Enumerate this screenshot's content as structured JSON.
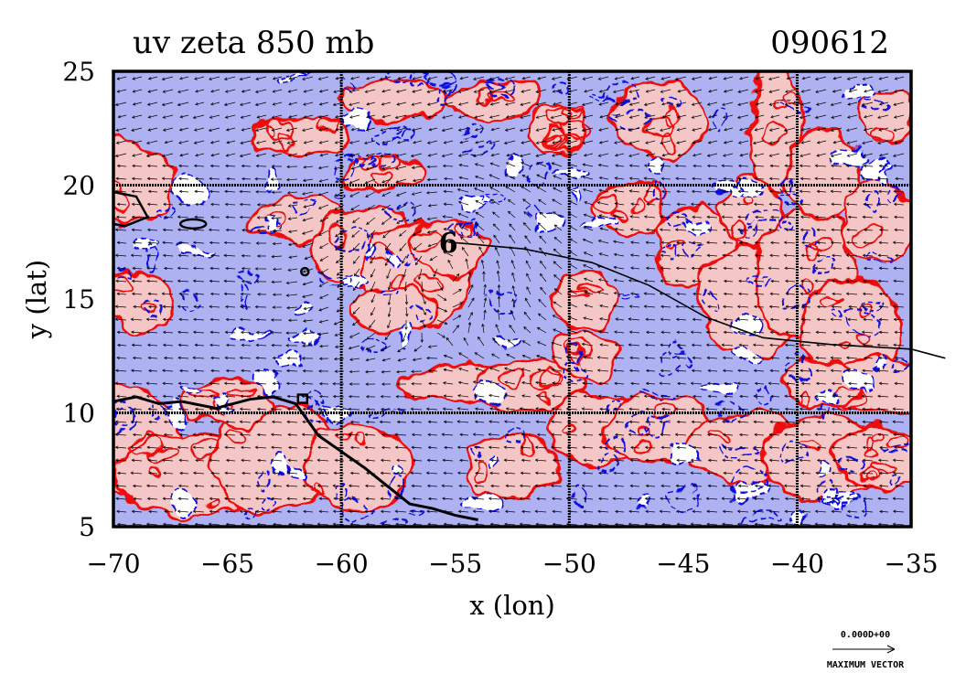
{
  "chart_data": {
    "type": "heatmap",
    "title": "uv zeta 850 mb",
    "date_label": "090612",
    "xlabel": "x (lon)",
    "ylabel": "y (lat)",
    "xlim": [
      -70,
      -35
    ],
    "ylim": [
      5,
      25
    ],
    "x_ticks": [
      -70,
      -65,
      -60,
      -55,
      -50,
      -45,
      -40,
      -35
    ],
    "y_ticks": [
      5,
      10,
      15,
      20,
      25
    ],
    "x_tick_labels": [
      "−70",
      "−65",
      "−60",
      "−55",
      "−50",
      "−45",
      "−40",
      "−35"
    ],
    "y_tick_labels": [
      "5",
      "10",
      "15",
      "20",
      "25"
    ],
    "grid_lon": [
      -60,
      -50,
      -40
    ],
    "grid_lat": [
      10,
      20
    ],
    "grid": true,
    "field": "relative vorticity (zeta) with wind vectors (u,v)",
    "colors": {
      "positive_fill": "#f5c6c6",
      "positive_contour": "#ee1111",
      "negative_fill": "#aeb2f2",
      "negative_contour": "#1111dd",
      "vector": "#000000",
      "track": "#000000"
    },
    "storm": {
      "symbol": "6",
      "lon": -55.3,
      "lat": 17.5
    },
    "track": [
      [
        -55.3,
        17.5
      ],
      [
        -52,
        17.2
      ],
      [
        -49,
        16.6
      ],
      [
        -46.5,
        15.6
      ],
      [
        -44,
        14.2
      ],
      [
        -41.5,
        13.3
      ],
      [
        -38.5,
        13.0
      ],
      [
        -35,
        12.8
      ],
      [
        -33.5,
        12.4
      ]
    ],
    "vector_legend": {
      "value_label": "0.000D+00",
      "caption": "MAXIMUM VECTOR"
    }
  }
}
